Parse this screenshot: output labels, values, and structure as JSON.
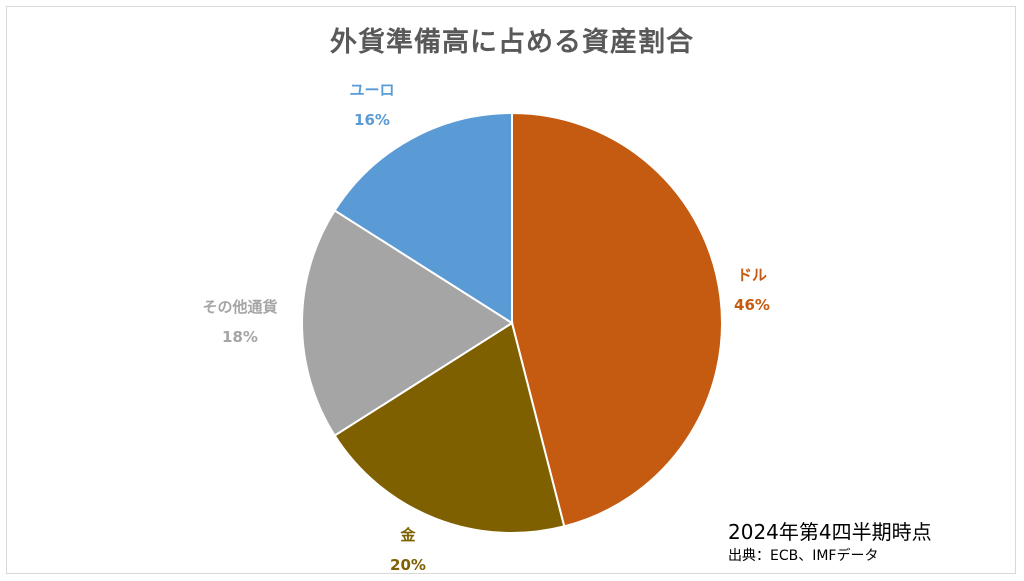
{
  "chart_data": {
    "type": "pie",
    "title": "外貨準備高に占める資産割合",
    "slices": [
      {
        "label": "ドル",
        "value": 46,
        "value_label": "46%",
        "color": "#C55A11"
      },
      {
        "label": "金",
        "value": 20,
        "value_label": "20%",
        "color": "#7F6000"
      },
      {
        "label": "その他通貨",
        "value": 18,
        "value_label": "18%",
        "color": "#A5A5A5"
      },
      {
        "label": "ユーロ",
        "value": 16,
        "value_label": "16%",
        "color": "#5B9BD5"
      }
    ]
  },
  "notes": {
    "period": "2024年第4四半期時点",
    "source": "出典：ECB、IMFデータ"
  }
}
